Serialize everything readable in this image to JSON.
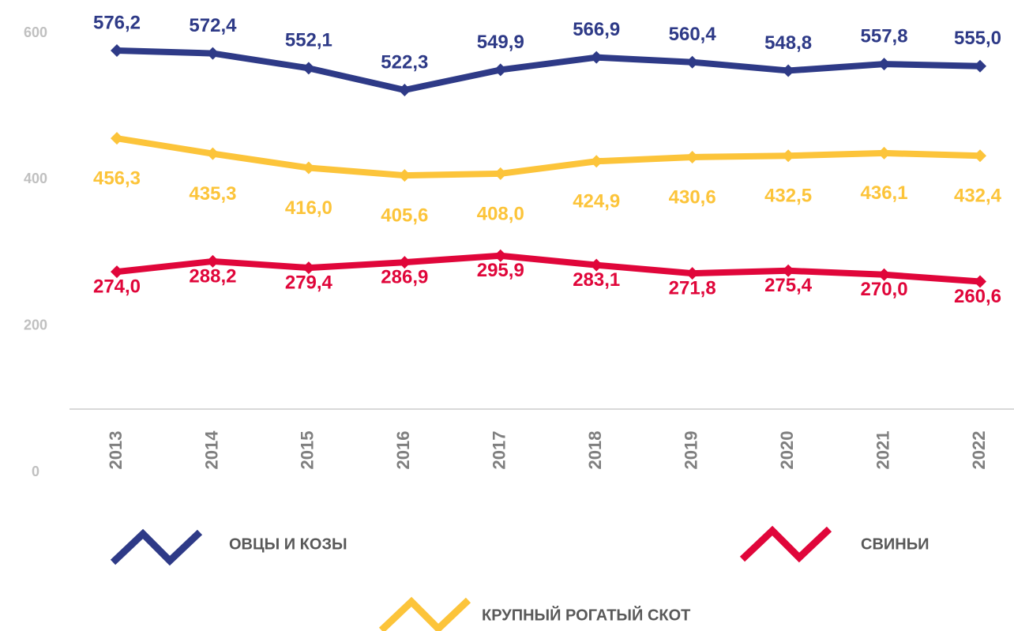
{
  "chart_data": {
    "type": "line",
    "categories": [
      "2013",
      "2014",
      "2015",
      "2016",
      "2017",
      "2018",
      "2019",
      "2020",
      "2021",
      "2022"
    ],
    "series": [
      {
        "name": "ОВЦЫ И КОЗЫ",
        "color": "#2e3a87",
        "values": [
          576.2,
          572.4,
          552.1,
          522.3,
          549.9,
          566.9,
          560.4,
          548.8,
          557.8,
          555.0
        ],
        "value_labels": [
          "576,2",
          "572,4",
          "552,1",
          "522,3",
          "549,9",
          "566,9",
          "560,4",
          "548,8",
          "557,8",
          "555,0"
        ]
      },
      {
        "name": "КРУПНЫЙ РОГАТЫЙ СКОТ",
        "color": "#fcc43a",
        "values": [
          456.3,
          435.3,
          416.0,
          405.6,
          408.0,
          424.9,
          430.6,
          432.5,
          436.1,
          432.4
        ],
        "value_labels": [
          "456,3",
          "435,3",
          "416,0",
          "405,6",
          "408,0",
          "424,9",
          "430,6",
          "432,5",
          "436,1",
          "432,4"
        ]
      },
      {
        "name": "СВИНЬИ",
        "color": "#e0063a",
        "values": [
          274.0,
          288.2,
          279.4,
          286.9,
          295.9,
          283.1,
          271.8,
          275.4,
          270.0,
          260.6
        ],
        "value_labels": [
          "274,0",
          "288,2",
          "279,4",
          "286,9",
          "295,9",
          "283,1",
          "271,8",
          "275,4",
          "270,0",
          "260,6"
        ]
      }
    ],
    "ylim": [
      0,
      600
    ],
    "yticks": [
      0,
      200,
      400,
      600
    ],
    "grid": false
  }
}
